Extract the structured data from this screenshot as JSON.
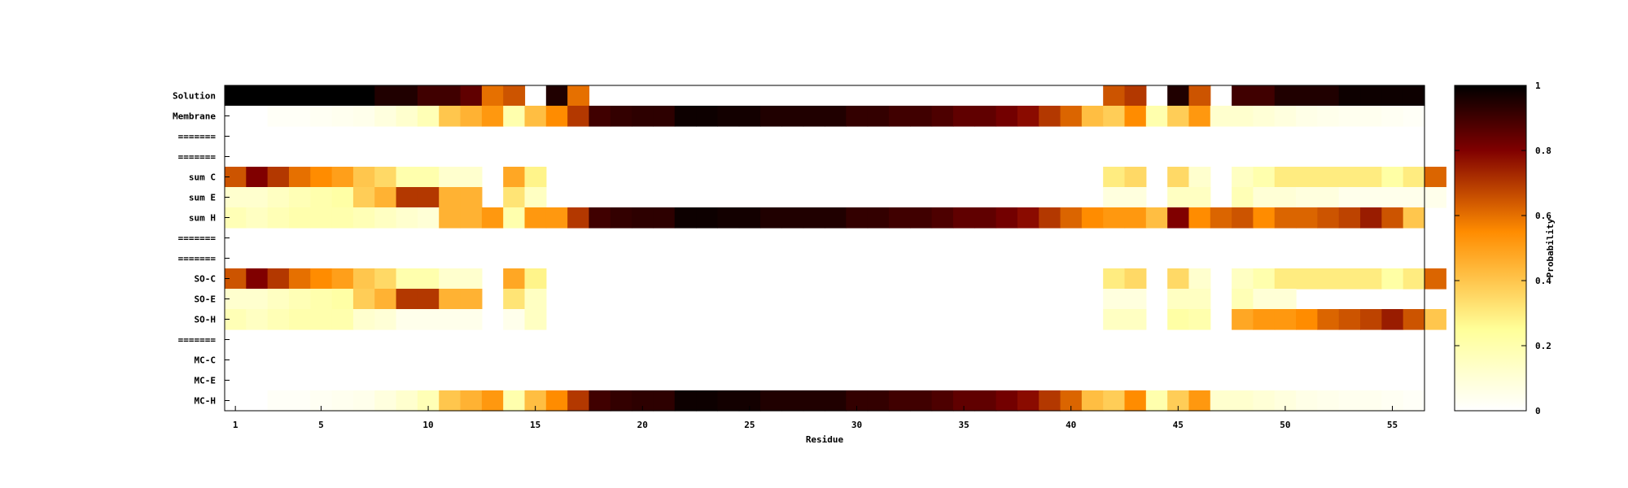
{
  "chart_data": {
    "type": "heatmap",
    "title": "",
    "xlabel": "Residue",
    "ylabel": "",
    "colorbar_label": "Probability",
    "xlim": [
      0.5,
      56.5
    ],
    "x_ticks": [
      1,
      5,
      10,
      15,
      20,
      25,
      30,
      35,
      40,
      45,
      50,
      55
    ],
    "colorbar_range": [
      0,
      1
    ],
    "colorbar_ticks": [
      0,
      0.2,
      0.4,
      0.6,
      0.8,
      1
    ],
    "colorbar_tick_labels": [
      "0",
      "0.2",
      "0.4",
      "0.6",
      "0.8",
      "1"
    ],
    "rows": [
      "Solution",
      "Membrane",
      "=======",
      "=======",
      "sum C",
      "sum E",
      "sum H",
      "=======",
      "=======",
      "SO-C",
      "SO-E",
      "SO-H",
      "=======",
      "MC-C",
      "MC-E",
      "MC-H"
    ],
    "residues": [
      1,
      2,
      3,
      4,
      5,
      6,
      7,
      8,
      9,
      10,
      11,
      12,
      13,
      14,
      15,
      16,
      17,
      18,
      19,
      20,
      21,
      22,
      23,
      24,
      25,
      26,
      27,
      28,
      29,
      30,
      31,
      32,
      33,
      34,
      35,
      36,
      37,
      38,
      39,
      40,
      41,
      42,
      43,
      44,
      45,
      46,
      47,
      48,
      49,
      50,
      51,
      52,
      53,
      54,
      55,
      56
    ],
    "values": [
      [
        1,
        1,
        1,
        1,
        1,
        1,
        1,
        0.95,
        0.95,
        0.9,
        0.9,
        0.85,
        0.6,
        0.65,
        null,
        0.95,
        0.6,
        null,
        null,
        null,
        null,
        null,
        null,
        null,
        null,
        null,
        null,
        null,
        null,
        null,
        null,
        null,
        null,
        null,
        null,
        null,
        null,
        null,
        null,
        null,
        null,
        0.65,
        0.7,
        null,
        0.95,
        0.65,
        null,
        0.9,
        0.9,
        0.95,
        0.95,
        0.95,
        0.98,
        0.98,
        0.98,
        0.98
      ],
      [
        0,
        0,
        0.02,
        0.02,
        0.03,
        0.04,
        0.05,
        0.08,
        0.12,
        0.18,
        0.4,
        0.45,
        0.52,
        0.2,
        0.42,
        0.55,
        0.7,
        0.9,
        0.92,
        0.93,
        0.93,
        0.98,
        0.98,
        0.97,
        0.97,
        0.95,
        0.95,
        0.95,
        0.95,
        0.92,
        0.92,
        0.9,
        0.9,
        0.88,
        0.85,
        0.85,
        0.82,
        0.78,
        0.7,
        0.62,
        0.42,
        0.38,
        0.55,
        0.2,
        0.38,
        0.52,
        0.12,
        0.12,
        0.1,
        0.08,
        0.06,
        0.05,
        0.04,
        0.04,
        0.03,
        0.02
      ],
      [
        null,
        null,
        null,
        null,
        null,
        null,
        null,
        null,
        null,
        null,
        null,
        null,
        null,
        null,
        null,
        null,
        null,
        null,
        null,
        null,
        null,
        null,
        null,
        null,
        null,
        null,
        null,
        null,
        null,
        null,
        null,
        null,
        null,
        null,
        null,
        null,
        null,
        null,
        null,
        null,
        null,
        null,
        null,
        null,
        null,
        null,
        null,
        null,
        null,
        null,
        null,
        null,
        null,
        null,
        null,
        null
      ],
      [
        null,
        null,
        null,
        null,
        null,
        null,
        null,
        null,
        null,
        null,
        null,
        null,
        null,
        null,
        null,
        null,
        null,
        null,
        null,
        null,
        null,
        null,
        null,
        null,
        null,
        null,
        null,
        null,
        null,
        null,
        null,
        null,
        null,
        null,
        null,
        null,
        null,
        null,
        null,
        null,
        null,
        null,
        null,
        null,
        null,
        null,
        null,
        null,
        null,
        null,
        null,
        null,
        null,
        null,
        null,
        null
      ],
      [
        0.65,
        0.8,
        0.7,
        0.6,
        0.55,
        0.5,
        0.4,
        0.35,
        0.2,
        0.2,
        0.12,
        0.12,
        null,
        0.48,
        0.28,
        null,
        null,
        null,
        null,
        null,
        null,
        null,
        null,
        null,
        null,
        null,
        null,
        null,
        null,
        null,
        null,
        null,
        null,
        null,
        null,
        null,
        null,
        null,
        null,
        null,
        null,
        0.3,
        0.35,
        null,
        0.35,
        0.12,
        null,
        0.15,
        0.2,
        0.3,
        0.3,
        0.3,
        0.3,
        0.3,
        0.22,
        0.3,
        0.62
      ],
      [
        0.12,
        0.12,
        0.15,
        0.18,
        0.2,
        0.22,
        0.38,
        0.45,
        0.7,
        0.7,
        0.45,
        0.45,
        null,
        0.32,
        0.15,
        null,
        null,
        null,
        null,
        null,
        null,
        null,
        null,
        null,
        null,
        null,
        null,
        null,
        null,
        null,
        null,
        null,
        null,
        null,
        null,
        null,
        null,
        null,
        null,
        null,
        null,
        0.08,
        0.08,
        null,
        0.15,
        0.15,
        null,
        0.18,
        0.1,
        0.1,
        0.08,
        0.08,
        0.05,
        0.05,
        0.05,
        0.05,
        0.05
      ],
      [
        0.18,
        0.15,
        0.18,
        0.2,
        0.2,
        0.2,
        0.18,
        0.15,
        0.12,
        0.1,
        0.45,
        0.45,
        0.52,
        0.2,
        0.52,
        0.52,
        0.7,
        0.9,
        0.92,
        0.93,
        0.93,
        0.98,
        0.98,
        0.97,
        0.97,
        0.95,
        0.95,
        0.95,
        0.95,
        0.92,
        0.92,
        0.9,
        0.9,
        0.88,
        0.85,
        0.85,
        0.82,
        0.78,
        0.7,
        0.62,
        0.55,
        0.52,
        0.52,
        0.42,
        0.8,
        0.55,
        0.62,
        0.65,
        0.55,
        0.62,
        0.62,
        0.65,
        0.68,
        0.75,
        0.65,
        0.4
      ],
      [
        null,
        null,
        null,
        null,
        null,
        null,
        null,
        null,
        null,
        null,
        null,
        null,
        null,
        null,
        null,
        null,
        null,
        null,
        null,
        null,
        null,
        null,
        null,
        null,
        null,
        null,
        null,
        null,
        null,
        null,
        null,
        null,
        null,
        null,
        null,
        null,
        null,
        null,
        null,
        null,
        null,
        null,
        null,
        null,
        null,
        null,
        null,
        null,
        null,
        null,
        null,
        null,
        null,
        null,
        null,
        null
      ],
      [
        null,
        null,
        null,
        null,
        null,
        null,
        null,
        null,
        null,
        null,
        null,
        null,
        null,
        null,
        null,
        null,
        null,
        null,
        null,
        null,
        null,
        null,
        null,
        null,
        null,
        null,
        null,
        null,
        null,
        null,
        null,
        null,
        null,
        null,
        null,
        null,
        null,
        null,
        null,
        null,
        null,
        null,
        null,
        null,
        null,
        null,
        null,
        null,
        null,
        null,
        null,
        null,
        null,
        null,
        null,
        null
      ],
      [
        0.65,
        0.8,
        0.7,
        0.6,
        0.55,
        0.5,
        0.4,
        0.35,
        0.2,
        0.2,
        0.12,
        0.12,
        null,
        0.48,
        0.28,
        null,
        null,
        null,
        null,
        null,
        null,
        null,
        null,
        null,
        null,
        null,
        null,
        null,
        null,
        null,
        null,
        null,
        null,
        null,
        null,
        null,
        null,
        null,
        null,
        null,
        null,
        0.3,
        0.35,
        null,
        0.35,
        0.12,
        null,
        0.15,
        0.2,
        0.3,
        0.3,
        0.3,
        0.3,
        0.3,
        0.22,
        0.3,
        0.62
      ],
      [
        0.12,
        0.12,
        0.15,
        0.18,
        0.2,
        0.22,
        0.38,
        0.45,
        0.7,
        0.7,
        0.45,
        0.45,
        null,
        0.32,
        0.15,
        null,
        null,
        null,
        null,
        null,
        null,
        null,
        null,
        null,
        null,
        null,
        null,
        null,
        null,
        null,
        null,
        null,
        null,
        null,
        null,
        null,
        null,
        null,
        null,
        null,
        null,
        0.08,
        0.08,
        null,
        0.15,
        0.15,
        null,
        0.18,
        0.1,
        0.1,
        null,
        null,
        null,
        null,
        null,
        null,
        null
      ],
      [
        0.18,
        0.15,
        0.18,
        0.2,
        0.2,
        0.2,
        0.12,
        0.1,
        0.05,
        0.05,
        0.05,
        0.05,
        null,
        0.05,
        0.15,
        null,
        null,
        null,
        null,
        null,
        null,
        null,
        null,
        null,
        null,
        null,
        null,
        null,
        null,
        null,
        null,
        null,
        null,
        null,
        null,
        null,
        null,
        null,
        null,
        null,
        null,
        0.15,
        0.15,
        null,
        0.22,
        0.2,
        null,
        0.48,
        0.52,
        0.52,
        0.55,
        0.62,
        0.65,
        0.68,
        0.75,
        0.65,
        0.4
      ],
      [
        null,
        null,
        null,
        null,
        null,
        null,
        null,
        null,
        null,
        null,
        null,
        null,
        null,
        null,
        null,
        null,
        null,
        null,
        null,
        null,
        null,
        null,
        null,
        null,
        null,
        null,
        null,
        null,
        null,
        null,
        null,
        null,
        null,
        null,
        null,
        null,
        null,
        null,
        null,
        null,
        null,
        null,
        null,
        null,
        null,
        null,
        null,
        null,
        null,
        null,
        null,
        null,
        null,
        null,
        null,
        null
      ],
      [
        null,
        null,
        null,
        null,
        null,
        null,
        null,
        null,
        null,
        null,
        null,
        null,
        null,
        null,
        null,
        null,
        null,
        null,
        null,
        null,
        null,
        null,
        null,
        null,
        null,
        null,
        null,
        null,
        null,
        null,
        null,
        null,
        null,
        null,
        null,
        null,
        null,
        null,
        null,
        null,
        null,
        null,
        null,
        null,
        null,
        null,
        null,
        null,
        null,
        null,
        null,
        null,
        null,
        null,
        null,
        null
      ],
      [
        null,
        null,
        null,
        null,
        null,
        null,
        null,
        null,
        null,
        null,
        null,
        null,
        null,
        null,
        null,
        null,
        null,
        null,
        null,
        null,
        null,
        null,
        null,
        null,
        null,
        null,
        null,
        null,
        null,
        null,
        null,
        null,
        null,
        null,
        null,
        null,
        null,
        null,
        null,
        null,
        null,
        null,
        null,
        null,
        null,
        null,
        null,
        null,
        null,
        null,
        null,
        null,
        null,
        null,
        null,
        null
      ],
      [
        0,
        0,
        0.02,
        0.02,
        0.03,
        0.04,
        0.05,
        0.08,
        0.12,
        0.18,
        0.4,
        0.45,
        0.52,
        0.2,
        0.42,
        0.55,
        0.7,
        0.9,
        0.92,
        0.93,
        0.93,
        0.98,
        0.98,
        0.97,
        0.97,
        0.95,
        0.95,
        0.95,
        0.95,
        0.92,
        0.92,
        0.9,
        0.9,
        0.88,
        0.85,
        0.85,
        0.82,
        0.78,
        0.7,
        0.62,
        0.42,
        0.38,
        0.55,
        0.2,
        0.38,
        0.52,
        0.12,
        0.12,
        0.1,
        0.08,
        0.06,
        0.05,
        0.04,
        0.04,
        0.03,
        0.02
      ]
    ],
    "colormap": [
      "#ffffff",
      "#ffff99",
      "#ff8c00",
      "#800000",
      "#000000"
    ],
    "grid": false,
    "legend": "colorbar-right"
  }
}
